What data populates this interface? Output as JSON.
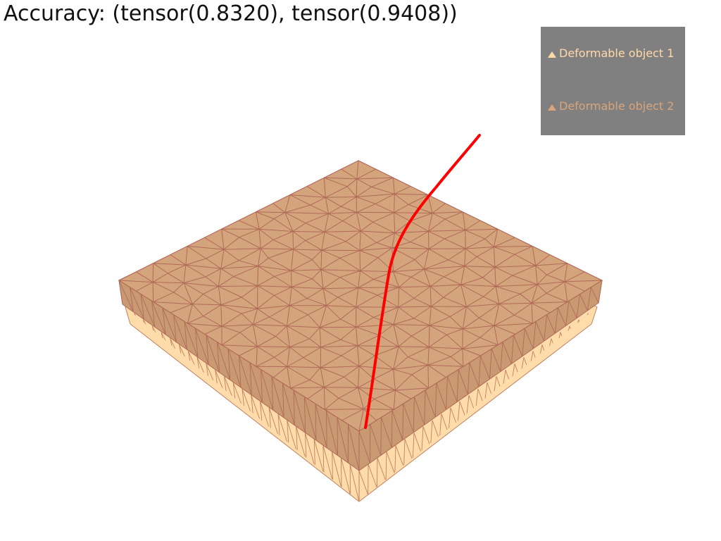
{
  "title": "Accuracy: (tensor(0.8320), tensor(0.9408))",
  "legend": {
    "items": [
      {
        "label": "Deformable object 1",
        "color": "#ffd9a8"
      },
      {
        "label": "Deformable object 2",
        "color": "#d9a47a"
      }
    ],
    "background": "#808080"
  },
  "scene": {
    "object1_fill": "#ffdcaa",
    "object1_edges": "#c08060",
    "object2_fill": "#d4a57c",
    "object2_edges": "#b06a5a",
    "trajectory_color": "#ff0000"
  }
}
